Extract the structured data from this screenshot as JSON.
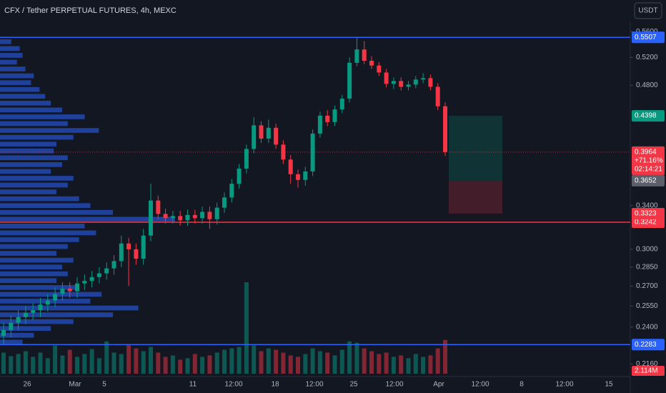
{
  "chart_data": {
    "type": "candlestick",
    "title": "CFX / Tether PERPETUAL FUTURES, 4h, MEXC",
    "currency": "USDT",
    "log_scale": true,
    "ylim": [
      0.21,
      0.58
    ],
    "yticks": [
      {
        "value": 0.56,
        "label": "0.5600"
      },
      {
        "value": 0.52,
        "label": "0.5200"
      },
      {
        "value": 0.48,
        "label": "0.4800"
      },
      {
        "value": 0.34,
        "label": "0.3400"
      },
      {
        "value": 0.3,
        "label": "0.3000"
      },
      {
        "value": 0.285,
        "label": "0.2850"
      },
      {
        "value": 0.27,
        "label": "0.2700"
      },
      {
        "value": 0.255,
        "label": "0.2550"
      },
      {
        "value": 0.24,
        "label": "0.2400"
      },
      {
        "value": 0.216,
        "label": "0.2160"
      }
    ],
    "xtick_labels": [
      "26",
      "Mar",
      "5",
      "11",
      "12:00",
      "18",
      "12:00",
      "25",
      "12:00",
      "Apr",
      "12:00",
      "8",
      "12:00",
      "15"
    ],
    "up_color": "#089981",
    "down_color": "#f23645",
    "open": [
      0.234,
      0.238,
      0.243,
      0.247,
      0.25,
      0.252,
      0.256,
      0.259,
      0.264,
      0.268,
      0.266,
      0.272,
      0.274,
      0.277,
      0.28,
      0.284,
      0.29,
      0.305,
      0.3,
      0.292,
      0.312,
      0.345,
      0.332,
      0.328,
      0.33,
      0.326,
      0.331,
      0.328,
      0.334,
      0.327,
      0.338,
      0.348,
      0.362,
      0.378,
      0.4,
      0.428,
      0.412,
      0.425,
      0.405,
      0.388,
      0.372,
      0.366,
      0.375,
      0.418,
      0.44,
      0.432,
      0.448,
      0.462,
      0.512,
      0.532,
      0.515,
      0.508,
      0.498,
      0.482,
      0.486,
      0.478,
      0.481,
      0.488,
      0.49,
      0.478,
      0.452
    ],
    "high": [
      0.243,
      0.248,
      0.252,
      0.255,
      0.257,
      0.261,
      0.264,
      0.269,
      0.273,
      0.273,
      0.277,
      0.279,
      0.282,
      0.285,
      0.289,
      0.295,
      0.312,
      0.31,
      0.305,
      0.318,
      0.362,
      0.35,
      0.337,
      0.335,
      0.335,
      0.336,
      0.336,
      0.339,
      0.339,
      0.343,
      0.353,
      0.367,
      0.383,
      0.405,
      0.438,
      0.433,
      0.435,
      0.43,
      0.41,
      0.393,
      0.377,
      0.38,
      0.423,
      0.445,
      0.447,
      0.453,
      0.467,
      0.52,
      0.55,
      0.545,
      0.522,
      0.513,
      0.503,
      0.491,
      0.491,
      0.486,
      0.493,
      0.497,
      0.495,
      0.483,
      0.457
    ],
    "low": [
      0.229,
      0.233,
      0.238,
      0.242,
      0.245,
      0.247,
      0.251,
      0.254,
      0.259,
      0.261,
      0.261,
      0.267,
      0.269,
      0.272,
      0.275,
      0.279,
      0.285,
      0.27,
      0.287,
      0.287,
      0.307,
      0.327,
      0.323,
      0.323,
      0.321,
      0.321,
      0.323,
      0.323,
      0.318,
      0.322,
      0.333,
      0.343,
      0.357,
      0.373,
      0.395,
      0.407,
      0.407,
      0.4,
      0.383,
      0.362,
      0.358,
      0.36,
      0.37,
      0.413,
      0.427,
      0.427,
      0.443,
      0.457,
      0.507,
      0.51,
      0.503,
      0.493,
      0.477,
      0.475,
      0.473,
      0.473,
      0.476,
      0.483,
      0.473,
      0.447,
      0.392
    ],
    "close": [
      0.238,
      0.243,
      0.247,
      0.25,
      0.252,
      0.256,
      0.259,
      0.264,
      0.268,
      0.266,
      0.272,
      0.274,
      0.277,
      0.28,
      0.284,
      0.29,
      0.305,
      0.3,
      0.292,
      0.312,
      0.345,
      0.332,
      0.328,
      0.33,
      0.326,
      0.331,
      0.328,
      0.334,
      0.327,
      0.338,
      0.348,
      0.362,
      0.378,
      0.4,
      0.428,
      0.412,
      0.425,
      0.405,
      0.388,
      0.372,
      0.366,
      0.375,
      0.418,
      0.44,
      0.432,
      0.448,
      0.462,
      0.512,
      0.532,
      0.515,
      0.508,
      0.498,
      0.482,
      0.486,
      0.478,
      0.481,
      0.488,
      0.49,
      0.478,
      0.452,
      0.3964
    ],
    "volume": [
      3,
      2.5,
      2.8,
      3.2,
      2.4,
      3,
      2.2,
      4,
      2.6,
      3.4,
      2.4,
      2.8,
      3.5,
      2.2,
      4.6,
      3,
      2.8,
      4.2,
      3.6,
      3.2,
      3.8,
      3,
      2.4,
      2.6,
      2,
      2.2,
      2.8,
      2.4,
      2.6,
      3,
      3.4,
      3.6,
      3.8,
      13,
      4,
      3.2,
      3.6,
      3.4,
      3,
      2.6,
      2.4,
      2.8,
      3.6,
      3.2,
      3,
      2.6,
      3.4,
      4.6,
      4.4,
      3.6,
      3.2,
      2.8,
      3,
      2.4,
      2.6,
      2.2,
      2.8,
      2.4,
      2.6,
      3.6,
      4.8
    ],
    "volume_label": "2.114M",
    "volume_profile": [
      20,
      35,
      40,
      30,
      45,
      60,
      55,
      70,
      80,
      90,
      110,
      150,
      120,
      175,
      130,
      100,
      95,
      120,
      110,
      90,
      130,
      120,
      100,
      140,
      160,
      200,
      310,
      150,
      170,
      140,
      120,
      100,
      130,
      110,
      120,
      100,
      140,
      180,
      160,
      245,
      200,
      130,
      90,
      60,
      40
    ],
    "horizontal_lines": [
      {
        "value": 0.5507,
        "color": "#2962ff"
      },
      {
        "value": 0.3242,
        "color": "#f23645"
      },
      {
        "value": 0.2283,
        "color": "#2962ff"
      }
    ],
    "position": {
      "target": 0.4398,
      "entry": 0.3652,
      "stop": 0.3323
    },
    "last_price": 0.3964,
    "change": "+71.16%",
    "countdown": "02:14:21"
  }
}
